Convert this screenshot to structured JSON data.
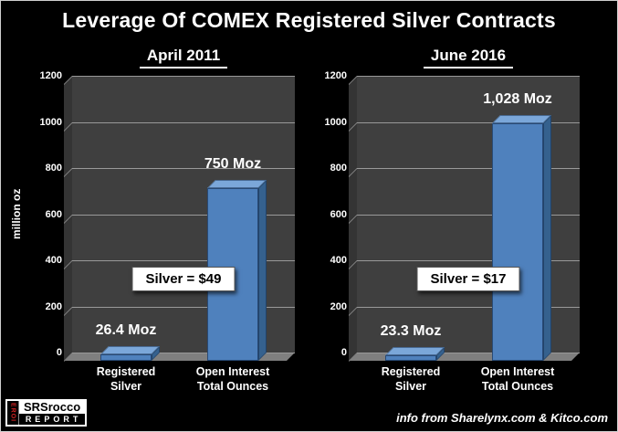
{
  "title": "Leverage Of COMEX Registered Silver Contracts",
  "colors": {
    "background": "#000000",
    "bar_front": "#4f81bd",
    "bar_top": "#7ba7d9",
    "bar_side": "#35618e",
    "plot_wall": "#3f3f3f",
    "plot_floor": "#7f7f7f",
    "annotation_bg": "#ffffff",
    "text": "#ffffff"
  },
  "chart_data": [
    {
      "type": "bar",
      "title": "April 2011",
      "ylabel": "million oz",
      "ylim": [
        0,
        1200
      ],
      "yticks": [
        0,
        200,
        400,
        600,
        800,
        1000,
        1200
      ],
      "categories": [
        "Registered Silver",
        "Open Interest Total Ounces"
      ],
      "values": [
        26.4,
        750
      ],
      "value_labels": [
        "26.4 Moz",
        "750 Moz"
      ],
      "annotation": "Silver = $49",
      "legend": "none",
      "grid": true
    },
    {
      "type": "bar",
      "title": "June 2016",
      "ylim": [
        0,
        1200
      ],
      "yticks": [
        0,
        200,
        400,
        600,
        800,
        1000,
        1200
      ],
      "categories": [
        "Registered Silver",
        "Open Interest Total Ounces"
      ],
      "values": [
        23.3,
        1028
      ],
      "value_labels": [
        "23.3 Moz",
        "1,028 Moz"
      ],
      "annotation": "Silver = $17",
      "legend": "none",
      "grid": true
    }
  ],
  "footer": {
    "logo": {
      "vertical_text": "EROI",
      "name": "SRSrocco",
      "subtitle": "REPORT"
    },
    "credit": "info from Sharelynx.com & Kitco.com"
  }
}
